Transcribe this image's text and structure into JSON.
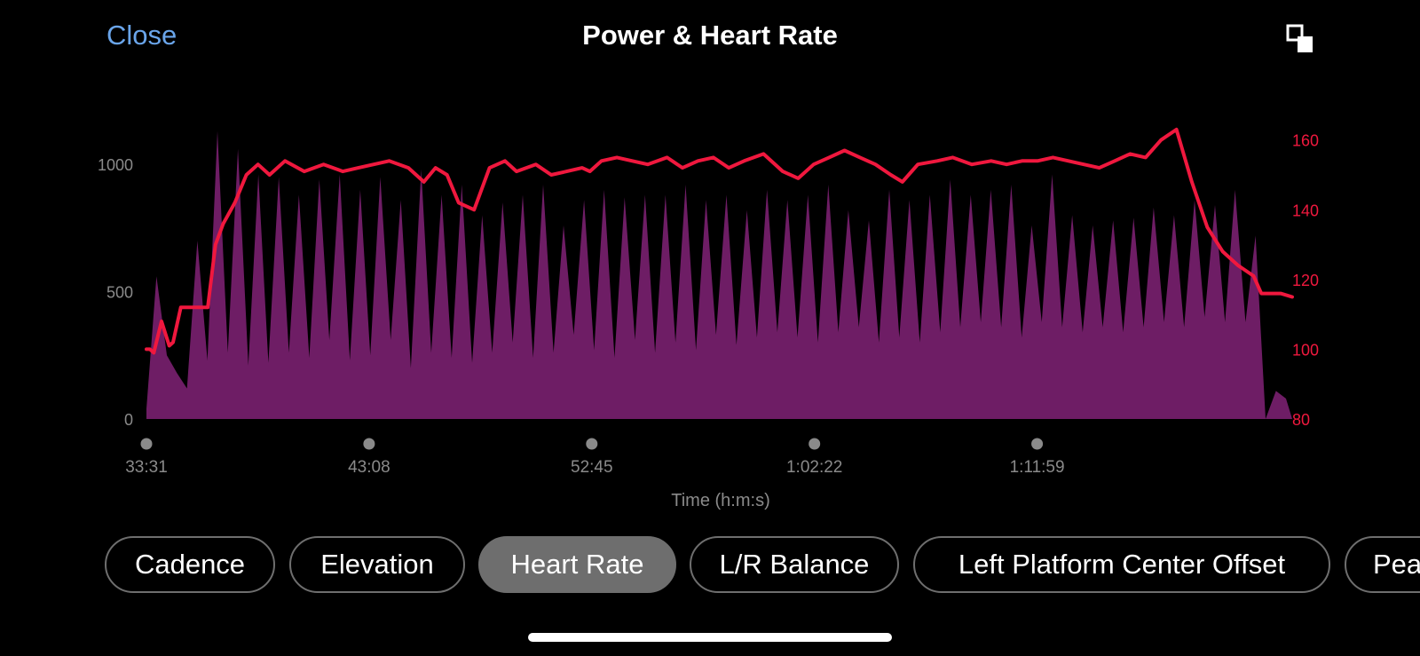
{
  "header": {
    "close_label": "Close",
    "title": "Power & Heart Rate",
    "expand_icon": "expand-icon"
  },
  "chips": [
    {
      "label": "Cadence",
      "selected": false
    },
    {
      "label": "Elevation",
      "selected": false
    },
    {
      "label": "Heart Rate",
      "selected": true
    },
    {
      "label": "L/R Balance",
      "selected": false
    },
    {
      "label": "Left Platform Center Offset",
      "selected": false
    },
    {
      "label": "Pea",
      "selected": false
    }
  ],
  "colors": {
    "accent": "#6aa5ea",
    "heart_rate": "#f0183e",
    "power": "#7a2070",
    "chip_selected": "#6e6e6e"
  },
  "chart_data": {
    "type": "area",
    "xlabel": "Time (h:m:s)",
    "x_ticks": [
      "33:31",
      "43:08",
      "52:45",
      "1:02:22",
      "1:11:59"
    ],
    "x_tick_seconds": [
      2011,
      2588,
      3165,
      3742,
      4319
    ],
    "x_range_seconds": [
      2011,
      4980
    ],
    "y_left": {
      "ticks": [
        0,
        500,
        1000
      ],
      "range": [
        0,
        1150
      ]
    },
    "y_right": {
      "ticks": [
        80,
        100,
        120,
        140,
        160
      ],
      "range": [
        80,
        164
      ]
    },
    "grid": false,
    "series": [
      {
        "axis": "left",
        "x_seconds": [
          2011,
          2037,
          2064,
          2090,
          2116,
          2143,
          2169,
          2195,
          2222,
          2248,
          2275,
          2301,
          2327,
          2354,
          2380,
          2406,
          2433,
          2459,
          2485,
          2512,
          2538,
          2565,
          2591,
          2617,
          2644,
          2670,
          2696,
          2723,
          2749,
          2776,
          2802,
          2828,
          2855,
          2881,
          2907,
          2934,
          2960,
          2986,
          3013,
          3039,
          3066,
          3092,
          3118,
          3145,
          3171,
          3197,
          3224,
          3250,
          3277,
          3303,
          3329,
          3356,
          3382,
          3408,
          3435,
          3461,
          3487,
          3514,
          3540,
          3567,
          3593,
          3619,
          3646,
          3672,
          3698,
          3725,
          3751,
          3778,
          3804,
          3830,
          3857,
          3883,
          3909,
          3936,
          3962,
          3988,
          4015,
          4041,
          4068,
          4094,
          4120,
          4147,
          4173,
          4199,
          4226,
          4252,
          4279,
          4305,
          4331,
          4358,
          4384,
          4410,
          4437,
          4463,
          4489,
          4516,
          4542,
          4569,
          4595,
          4621,
          4648,
          4674,
          4700,
          4727,
          4753,
          4780,
          4806,
          4832,
          4859,
          4885,
          4911,
          4938,
          4964,
          4980
        ],
        "values": [
          40,
          560,
          250,
          180,
          120,
          700,
          230,
          1130,
          260,
          1060,
          210,
          960,
          220,
          950,
          260,
          880,
          240,
          940,
          310,
          960,
          230,
          900,
          250,
          950,
          310,
          860,
          200,
          980,
          260,
          880,
          240,
          920,
          220,
          800,
          260,
          850,
          300,
          880,
          240,
          920,
          260,
          760,
          330,
          860,
          270,
          900,
          240,
          870,
          310,
          880,
          260,
          880,
          300,
          920,
          270,
          860,
          330,
          880,
          290,
          820,
          320,
          900,
          340,
          860,
          320,
          880,
          300,
          920,
          340,
          820,
          360,
          780,
          300,
          900,
          320,
          860,
          300,
          880,
          340,
          940,
          360,
          880,
          380,
          900,
          360,
          920,
          320,
          760,
          380,
          960,
          360,
          800,
          340,
          760,
          360,
          780,
          340,
          790,
          360,
          830,
          380,
          800,
          360,
          860,
          400,
          840,
          380,
          900,
          380,
          720,
          0,
          110,
          80,
          0
        ]
      },
      {
        "axis": "right",
        "x_seconds": [
          2011,
          2020,
          2030,
          2050,
          2070,
          2080,
          2100,
          2130,
          2170,
          2190,
          2210,
          2240,
          2270,
          2300,
          2330,
          2370,
          2420,
          2470,
          2520,
          2560,
          2600,
          2640,
          2690,
          2730,
          2760,
          2790,
          2820,
          2860,
          2900,
          2940,
          2970,
          3020,
          3060,
          3100,
          3140,
          3160,
          3190,
          3230,
          3270,
          3310,
          3360,
          3400,
          3440,
          3480,
          3520,
          3560,
          3610,
          3660,
          3700,
          3740,
          3780,
          3820,
          3860,
          3900,
          3940,
          3970,
          4010,
          4060,
          4100,
          4150,
          4200,
          4240,
          4280,
          4320,
          4360,
          4400,
          4440,
          4480,
          4520,
          4560,
          4600,
          4640,
          4680,
          4720,
          4760,
          4800,
          4840,
          4880,
          4900,
          4920,
          4950,
          4980
        ],
        "values": [
          100,
          100,
          99,
          108,
          101,
          102,
          112,
          112,
          112,
          130,
          136,
          142,
          150,
          153,
          150,
          154,
          151,
          153,
          151,
          152,
          153,
          154,
          152,
          148,
          152,
          150,
          142,
          140,
          152,
          154,
          151,
          153,
          150,
          151,
          152,
          151,
          154,
          155,
          154,
          153,
          155,
          152,
          154,
          155,
          152,
          154,
          156,
          151,
          149,
          153,
          155,
          157,
          155,
          153,
          150,
          148,
          153,
          154,
          155,
          153,
          154,
          153,
          154,
          154,
          155,
          154,
          153,
          152,
          154,
          156,
          155,
          160,
          163,
          148,
          135,
          128,
          124,
          121,
          116,
          116,
          116,
          115
        ]
      }
    ]
  }
}
